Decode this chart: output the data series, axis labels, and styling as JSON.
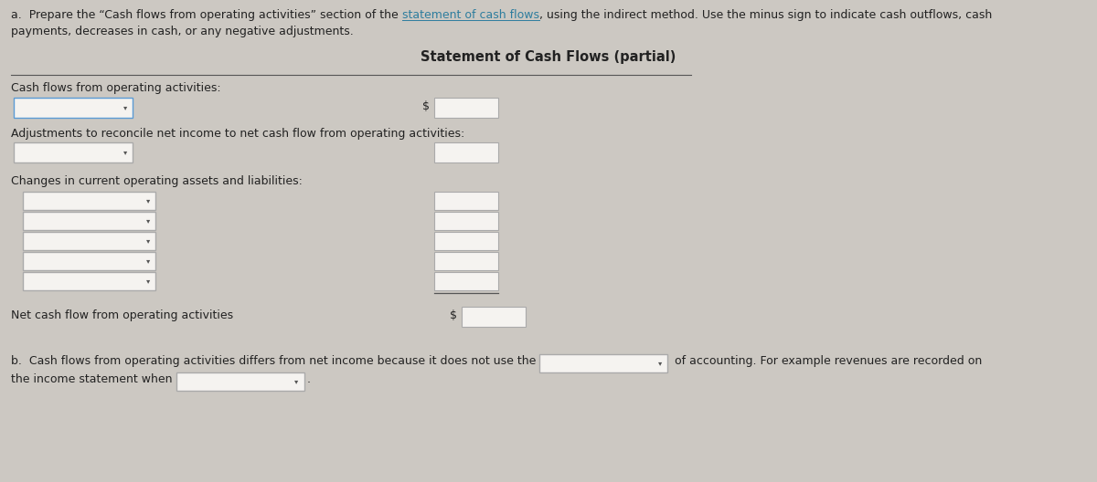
{
  "bg_color": "#ccc8c2",
  "panel_color": "#e8e4de",
  "title": "Statement of Cash Flows (partial)",
  "label_cash_flows": "Cash flows from operating activities:",
  "label_adjustments": "Adjustments to reconcile net income to net cash flow from operating activities:",
  "label_changes": "Changes in current operating assets and liabilities:",
  "label_net_cash": "Net cash flow from operating activities",
  "instruction_b_pre": "b.  Cash flows from operating activities differs from net income because it does not use the",
  "instruction_b_mid": " of accounting. For example revenues are recorded on",
  "instruction_b_end": "the income statement when",
  "dropdown_color": "#f5f3f0",
  "dropdown_border": "#aaaaaa",
  "dropdown_border_active": "#5b9bd5",
  "input_box_color": "#f5f3f0",
  "input_box_border": "#aaaaaa",
  "line_color": "#555555",
  "text_color": "#222222",
  "link_color": "#2e7d9e",
  "font_size": 9.0,
  "title_font_size": 10.5
}
